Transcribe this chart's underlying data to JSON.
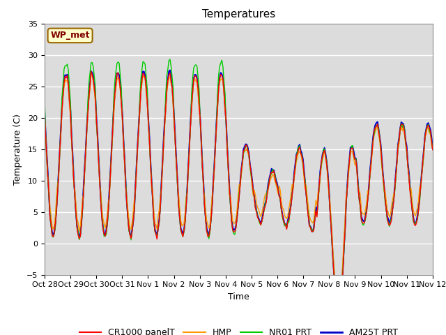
{
  "title": "Temperatures",
  "xlabel": "Time",
  "ylabel": "Temperature (C)",
  "ylim": [
    -5,
    35
  ],
  "annotation_text": "WP_met",
  "annotation_color": "#800000",
  "bg_color": "#dcdcdc",
  "line_colors": {
    "CR1000 panelT": "#ff0000",
    "HMP": "#ff9900",
    "NR01 PRT": "#00cc00",
    "AM25T PRT": "#0000cc"
  },
  "line_widths": {
    "CR1000 panelT": 1.0,
    "HMP": 1.0,
    "NR01 PRT": 1.0,
    "AM25T PRT": 1.5
  },
  "x_tick_labels": [
    "Oct 28",
    "Oct 29",
    "Oct 30",
    "Oct 31",
    "Nov 1",
    "Nov 2",
    "Nov 3",
    "Nov 4",
    "Nov 5",
    "Nov 6",
    "Nov 7",
    "Nov 8",
    "Nov 9",
    "Nov 10",
    "Nov 11",
    "Nov 12"
  ],
  "yticks": [
    -5,
    0,
    5,
    10,
    15,
    20,
    25,
    30,
    35
  ],
  "grid_color": "#ffffff",
  "title_fontsize": 11,
  "axis_fontsize": 9,
  "tick_fontsize": 8,
  "legend_fontsize": 9
}
